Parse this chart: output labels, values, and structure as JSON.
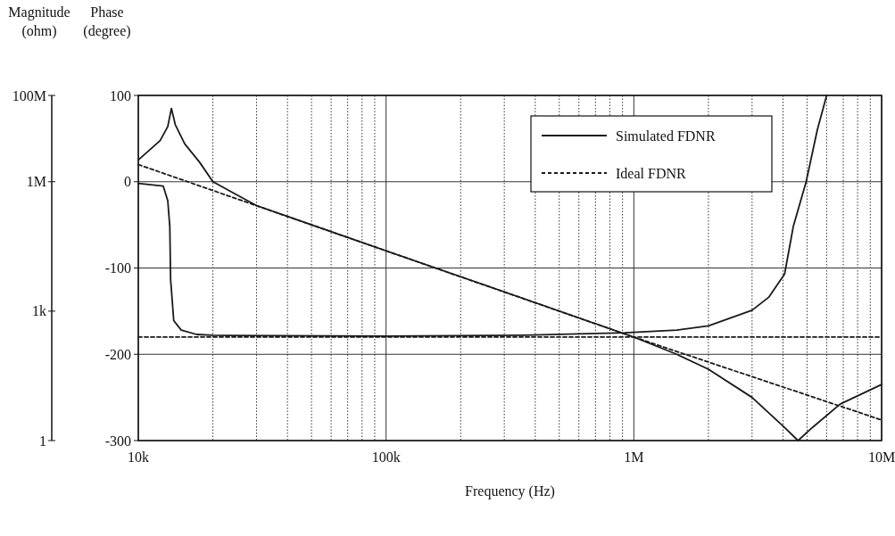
{
  "chart_data": {
    "type": "line",
    "xlabel": "Frequency (Hz)",
    "ylabel": "Magnitude (ohm)",
    "y2label": "Phase (degree)",
    "log": "xy",
    "grid": true,
    "legend": "top right",
    "xlim": [
      10000,
      10000000
    ],
    "xticks": [
      {
        "value": 10000,
        "label": "10k"
      },
      {
        "value": 100000,
        "label": "100k"
      },
      {
        "value": 1000000,
        "label": "1M"
      },
      {
        "value": 10000000,
        "label": "10M"
      }
    ],
    "ylim": [
      1,
      100000000
    ],
    "yticks": [
      {
        "value": 1,
        "label": "1"
      },
      {
        "value": 1000,
        "label": "1k"
      },
      {
        "value": 1000000,
        "label": "1M"
      },
      {
        "value": 100000000,
        "label": "100M"
      }
    ],
    "y2lim": [
      -300,
      100
    ],
    "y2ticks": [
      -300,
      -200,
      -100,
      0,
      100
    ],
    "series": [
      {
        "color": "#1a1a1a",
        "line_style": "solid",
        "x": [
          10000,
          12250,
          13150,
          13600,
          14100,
          15400,
          17700,
          20000,
          30000,
          100000,
          300000,
          1000000,
          1490000,
          2000000,
          3000000,
          4060000,
          4600000,
          5250000,
          6800000,
          10000000
        ],
        "values": [
          3200000,
          9000000,
          19000000,
          50000000,
          21000000,
          7500000,
          2800000,
          1000000,
          280000,
          25000,
          2800,
          250,
          100,
          45,
          10,
          2,
          1,
          2,
          7,
          20
        ]
      },
      {
        "color": "#1a1a1a",
        "line_style": "dashed",
        "x": [
          10000,
          100000,
          1000000,
          10000000
        ],
        "values": [
          2500000,
          25000,
          250,
          3
        ]
      },
      {
        "axis": "y2",
        "name": "Simulated FDNR",
        "color": "#1a1a1a",
        "line_style": "solid",
        "x": [
          10000,
          12600,
          13150,
          13400,
          13500,
          13900,
          14900,
          17200,
          20000,
          100000,
          357000,
          920000,
          1490000,
          2000000,
          3000000,
          3500000,
          4060000,
          4400000,
          4960000,
          5500000,
          6000000
        ],
        "values": [
          -2,
          -5,
          -22,
          -52,
          -113,
          -161,
          -172,
          -177,
          -178,
          -179,
          -178,
          -175,
          -172,
          -167,
          -149,
          -134,
          -107,
          -52,
          0,
          60,
          100
        ]
      },
      {
        "axis": "y2",
        "name": "Ideal FDNR",
        "color": "#1a1a1a",
        "line_style": "dashed",
        "x": [
          10000,
          10000000
        ],
        "values": [
          -180,
          -180
        ]
      }
    ]
  }
}
